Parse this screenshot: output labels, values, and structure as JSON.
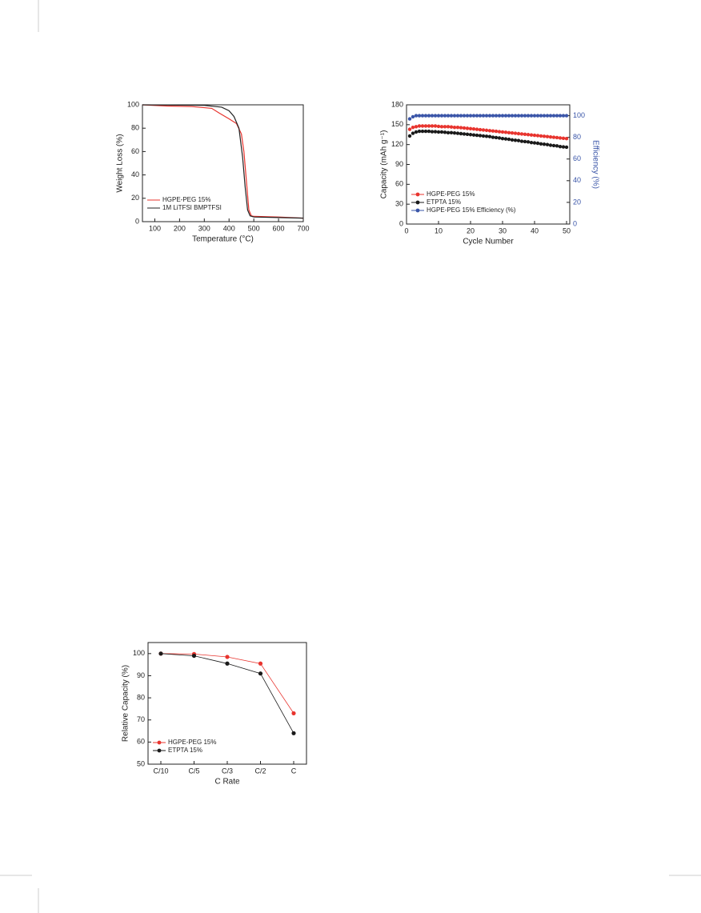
{
  "chart_data": [
    {
      "type": "line",
      "xlabel": "Temperature (°C)",
      "ylabel": "Weight Loss (%)",
      "xlim": [
        50,
        700
      ],
      "xticks": [
        100,
        200,
        300,
        400,
        500,
        600,
        700
      ],
      "ylim": [
        0,
        100
      ],
      "yticks": [
        0,
        20,
        40,
        60,
        80,
        100
      ],
      "legend": "lower left",
      "series": [
        {
          "name": "HGPE-PEG 15%",
          "color": "#e8342e",
          "x": [
            50,
            150,
            250,
            330,
            360,
            400,
            430,
            450,
            460,
            470,
            480,
            490,
            500,
            600,
            700
          ],
          "values": [
            100,
            99,
            98.5,
            97,
            93,
            88,
            84,
            75,
            60,
            35,
            10,
            5,
            4.5,
            4,
            3
          ]
        },
        {
          "name": "1M LiTFSI BMPTFSI",
          "color": "#222222",
          "x": [
            50,
            300,
            370,
            400,
            420,
            440,
            455,
            465,
            475,
            485,
            500,
            600,
            700
          ],
          "values": [
            100,
            99.5,
            98,
            95,
            90,
            80,
            55,
            30,
            10,
            5,
            4,
            3.5,
            3
          ]
        }
      ]
    },
    {
      "type": "scatter",
      "xlabel": "Cycle Number",
      "ylabel": "Capacity (mAh g⁻¹)",
      "y2label": "Efficiency (%)",
      "xlim": [
        0,
        51
      ],
      "xticks": [
        0,
        10,
        20,
        30,
        40,
        50
      ],
      "ylim": [
        0,
        180
      ],
      "yticks": [
        0,
        30,
        60,
        90,
        120,
        150,
        180
      ],
      "y2lim": [
        0,
        110
      ],
      "y2ticks": [
        0,
        20,
        40,
        60,
        80,
        100
      ],
      "legend": "lower left",
      "x": [
        1,
        2,
        3,
        4,
        5,
        6,
        7,
        8,
        9,
        10,
        11,
        12,
        13,
        14,
        15,
        16,
        17,
        18,
        19,
        20,
        21,
        22,
        23,
        24,
        25,
        26,
        27,
        28,
        29,
        30,
        31,
        32,
        33,
        34,
        35,
        36,
        37,
        38,
        39,
        40,
        41,
        42,
        43,
        44,
        45,
        46,
        47,
        48,
        49,
        50
      ],
      "series": [
        {
          "name": "HGPE-PEG 15%",
          "color": "#e8342e",
          "values": [
            143,
            146,
            147,
            148,
            148,
            148,
            148,
            148,
            148,
            147.5,
            147,
            147,
            147,
            146.5,
            146,
            146,
            145.5,
            145,
            144.5,
            144,
            143.5,
            143,
            142.5,
            142,
            141.5,
            141,
            140.5,
            140,
            139.5,
            139,
            138.5,
            138,
            137.5,
            137,
            136.5,
            136,
            135.5,
            135,
            134.5,
            134,
            133.5,
            133,
            132.5,
            132,
            131.5,
            131,
            130.5,
            130,
            129.5,
            129
          ]
        },
        {
          "name": "ETPTA 15%",
          "color": "#1a1a1a",
          "values": [
            133,
            137,
            139,
            140,
            140,
            140,
            140,
            139.5,
            139.5,
            139,
            139,
            138.5,
            138,
            138,
            137.5,
            137,
            136.5,
            136,
            135.5,
            135,
            134.5,
            134,
            133.5,
            133,
            132.5,
            132,
            131,
            130.5,
            130,
            129,
            128.5,
            128,
            127,
            126.5,
            126,
            125,
            124.5,
            124,
            123,
            122.5,
            122,
            121,
            120.5,
            120,
            119,
            118.5,
            118,
            117,
            116.5,
            116
          ]
        },
        {
          "name": "HGPE-PEG 15% Efficiency (%)",
          "color": "#3a55a8",
          "axis": "y2",
          "values": [
            97,
            99,
            100,
            100,
            100,
            100,
            100,
            100,
            100,
            100,
            100,
            100,
            100,
            100,
            100,
            100,
            100,
            100,
            100,
            100,
            100,
            100,
            100,
            100,
            100,
            100,
            100,
            100,
            100,
            100,
            100,
            100,
            100,
            100,
            100,
            100,
            100,
            100,
            100,
            100,
            100,
            100,
            100,
            100,
            100,
            100,
            100,
            100,
            100,
            100
          ]
        }
      ]
    },
    {
      "type": "line",
      "markers": true,
      "xlabel": "C Rate",
      "ylabel": "Relative Capacity (%)",
      "categories": [
        "C/10",
        "C/5",
        "C/3",
        "C/2",
        "C"
      ],
      "ylim": [
        50,
        105
      ],
      "yticks": [
        50,
        60,
        70,
        80,
        90,
        100
      ],
      "legend": "lower left",
      "series": [
        {
          "name": "HGPE-PEG 15%",
          "color": "#e8342e",
          "values": [
            100,
            99.8,
            98.5,
            95.5,
            73
          ]
        },
        {
          "name": "ETPTA 15%",
          "color": "#1a1a1a",
          "values": [
            100,
            99,
            95.5,
            91,
            64
          ]
        }
      ]
    }
  ]
}
